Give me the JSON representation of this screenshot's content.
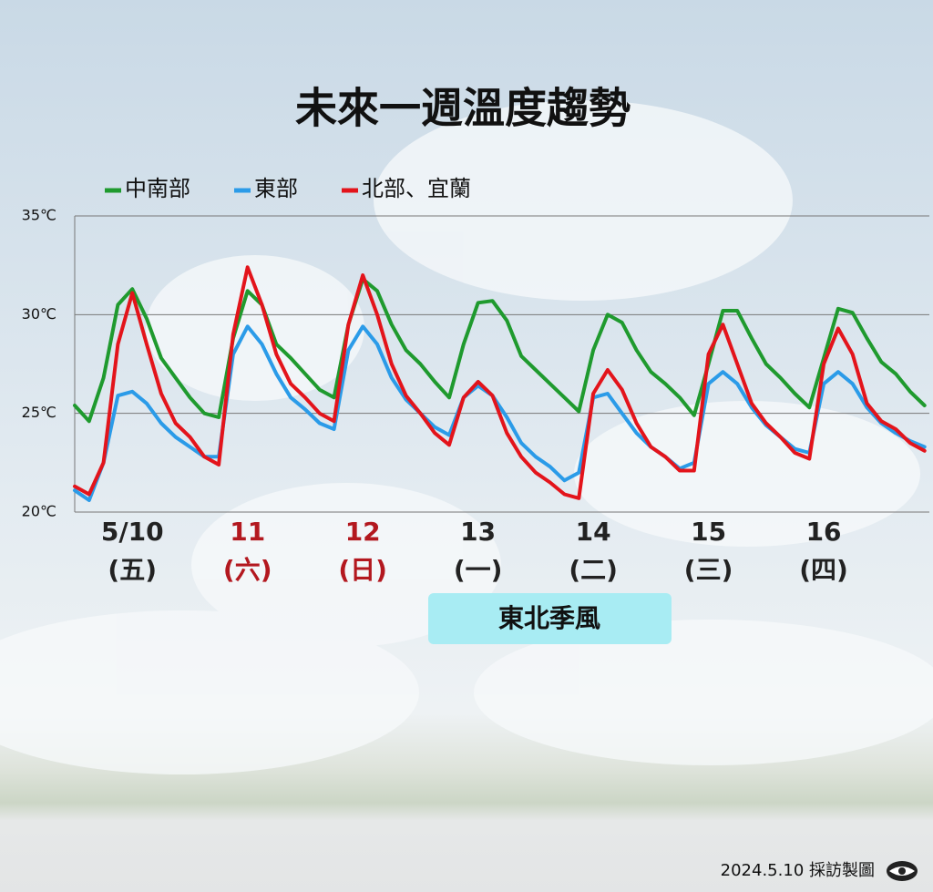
{
  "chart_data": {
    "type": "line",
    "title": "未來一週溫度趨勢",
    "x": [
      0,
      3,
      6,
      9,
      12,
      15,
      18,
      21,
      24,
      27,
      30,
      33,
      36,
      39,
      42,
      45,
      48,
      51,
      54,
      57,
      60,
      63,
      66,
      69,
      72,
      75,
      78,
      81,
      84,
      87,
      90,
      93,
      96,
      99,
      102,
      105,
      108,
      111,
      114,
      117,
      120,
      123,
      126,
      129,
      132,
      135,
      138,
      141,
      144,
      147,
      150,
      153,
      156,
      159,
      162,
      165,
      168,
      171,
      174,
      177
    ],
    "xlim": [
      0,
      178
    ],
    "xticks": [
      {
        "value": 12,
        "label": "5/10"
      },
      {
        "value": 36,
        "label": "11"
      },
      {
        "value": 60,
        "label": "12"
      },
      {
        "value": 84,
        "label": "13"
      },
      {
        "value": 108,
        "label": "14"
      },
      {
        "value": 132,
        "label": "15"
      },
      {
        "value": 156,
        "label": "16"
      }
    ],
    "xtick_sublabels": [
      "(五)",
      "(六)",
      "(日)",
      "(一)",
      "(二)",
      "(三)",
      "(四)"
    ],
    "xtick_colors": [
      "#222222",
      "#b3181f",
      "#b3181f",
      "#222222",
      "#222222",
      "#222222",
      "#222222"
    ],
    "ylim": [
      20,
      35
    ],
    "yticks": [
      {
        "value": 20,
        "label": "20℃"
      },
      {
        "value": 25,
        "label": "25℃"
      },
      {
        "value": 30,
        "label": "30℃"
      },
      {
        "value": 35,
        "label": "35℃"
      }
    ],
    "grid": true,
    "series": [
      {
        "name": "中南部",
        "color": "#1f9a2e",
        "values": [
          25.4,
          24.6,
          26.8,
          30.5,
          31.3,
          29.8,
          27.8,
          26.8,
          25.8,
          25.0,
          24.8,
          28.8,
          31.2,
          30.5,
          28.5,
          27.8,
          27.0,
          26.2,
          25.8,
          29.5,
          31.8,
          31.2,
          29.5,
          28.2,
          27.5,
          26.6,
          25.8,
          28.5,
          30.6,
          30.7,
          29.7,
          27.9,
          27.2,
          26.5,
          25.8,
          25.1,
          28.2,
          30.0,
          29.6,
          28.2,
          27.1,
          26.5,
          25.8,
          24.9,
          27.5,
          30.2,
          30.2,
          28.8,
          27.5,
          26.8,
          26.0,
          25.3,
          27.8,
          30.3,
          30.1,
          28.8,
          27.6,
          27.0,
          26.1,
          25.4
        ]
      },
      {
        "name": "東部",
        "color": "#2b9be8",
        "values": [
          21.1,
          20.6,
          22.5,
          25.9,
          26.1,
          25.5,
          24.5,
          23.8,
          23.3,
          22.8,
          22.8,
          28.0,
          29.4,
          28.5,
          27.0,
          25.8,
          25.2,
          24.5,
          24.2,
          28.2,
          29.4,
          28.5,
          26.8,
          25.7,
          25.0,
          24.3,
          23.9,
          25.8,
          26.4,
          25.9,
          24.8,
          23.5,
          22.8,
          22.3,
          21.6,
          22.0,
          25.8,
          26.0,
          25.0,
          24.0,
          23.3,
          22.8,
          22.2,
          22.5,
          26.5,
          27.1,
          26.5,
          25.3,
          24.4,
          23.8,
          23.2,
          23.0,
          26.5,
          27.1,
          26.5,
          25.3,
          24.5,
          24.0,
          23.6,
          23.3
        ]
      },
      {
        "name": "北部、宜蘭",
        "color": "#e3141b",
        "values": [
          21.3,
          20.9,
          22.5,
          28.5,
          31.1,
          28.5,
          26.0,
          24.5,
          23.8,
          22.8,
          22.4,
          29.0,
          32.4,
          30.5,
          28.0,
          26.5,
          25.8,
          25.0,
          24.6,
          29.5,
          32.0,
          30.0,
          27.5,
          25.9,
          25.0,
          24.0,
          23.4,
          25.8,
          26.6,
          25.9,
          24.0,
          22.8,
          22.0,
          21.5,
          20.9,
          20.7,
          26.0,
          27.2,
          26.2,
          24.5,
          23.3,
          22.8,
          22.1,
          22.1,
          28.0,
          29.5,
          27.5,
          25.5,
          24.5,
          23.8,
          23.0,
          22.7,
          27.5,
          29.3,
          28.0,
          25.5,
          24.6,
          24.2,
          23.5,
          23.1
        ]
      }
    ],
    "annotation": "東北季風",
    "credit": "2024.5.10 採訪製圖"
  }
}
